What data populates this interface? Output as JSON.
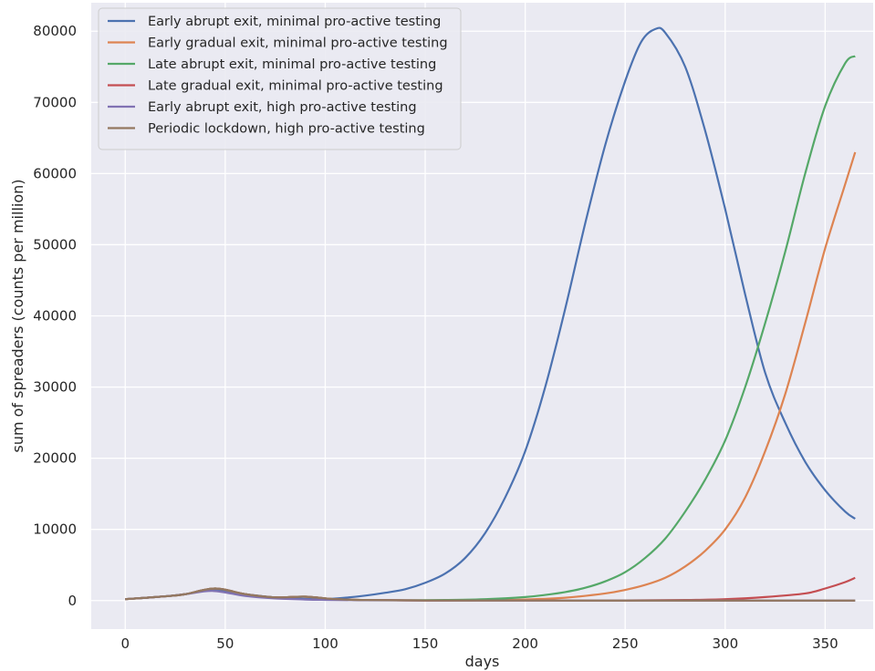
{
  "chart_data": {
    "type": "line",
    "title": "",
    "xlabel": "days",
    "ylabel": "sum of spreaders (counts per million)",
    "xlim": [
      -17,
      374
    ],
    "ylim": [
      -4000,
      84000
    ],
    "xticks": [
      0,
      50,
      100,
      150,
      200,
      250,
      300,
      350
    ],
    "yticks": [
      0,
      10000,
      20000,
      30000,
      40000,
      50000,
      60000,
      70000,
      80000
    ],
    "grid": true,
    "legend_position": "top-left",
    "series": [
      {
        "name": "Early  abrupt exit, minimal pro-active testing",
        "color": "#4c72b0",
        "x": [
          0,
          20,
          30,
          44,
          60,
          75,
          90,
          100,
          110,
          120,
          130,
          140,
          150,
          160,
          170,
          180,
          190,
          200,
          210,
          220,
          230,
          240,
          250,
          258,
          265,
          270,
          280,
          290,
          300,
          310,
          320,
          330,
          340,
          350,
          360,
          365
        ],
        "y": [
          200,
          600,
          900,
          1500,
          900,
          450,
          250,
          200,
          400,
          700,
          1100,
          1600,
          2500,
          3800,
          6000,
          9500,
          14500,
          21000,
          30000,
          41000,
          53000,
          64000,
          73000,
          78500,
          80300,
          79800,
          75000,
          66000,
          55000,
          43000,
          32000,
          25000,
          19500,
          15500,
          12500,
          11500
        ]
      },
      {
        "name": "Early gradual exit, minimal pro-active testing",
        "color": "#dd8452",
        "x": [
          0,
          20,
          30,
          45,
          60,
          75,
          90,
          105,
          120,
          140,
          160,
          180,
          200,
          220,
          240,
          250,
          260,
          270,
          280,
          290,
          300,
          310,
          320,
          330,
          340,
          350,
          360,
          365
        ],
        "y": [
          200,
          600,
          900,
          1700,
          900,
          450,
          550,
          200,
          80,
          30,
          20,
          50,
          150,
          400,
          1000,
          1500,
          2200,
          3200,
          4800,
          7000,
          10000,
          14500,
          21000,
          29000,
          39000,
          49500,
          58500,
          63000
        ]
      },
      {
        "name": "Late abrupt exit, minimal pro-active testing",
        "color": "#55a868",
        "x": [
          0,
          20,
          30,
          45,
          60,
          75,
          90,
          105,
          120,
          140,
          160,
          180,
          200,
          210,
          220,
          230,
          240,
          250,
          260,
          270,
          280,
          290,
          300,
          310,
          320,
          330,
          340,
          350,
          360,
          365
        ],
        "y": [
          200,
          600,
          900,
          1700,
          900,
          450,
          550,
          200,
          80,
          40,
          80,
          200,
          500,
          800,
          1200,
          1800,
          2700,
          4000,
          6000,
          8700,
          12500,
          17000,
          22500,
          30000,
          39000,
          49000,
          60000,
          69500,
          75500,
          76500
        ]
      },
      {
        "name": "Late gradual exit, minimal pro-active testing",
        "color": "#c44e52",
        "x": [
          0,
          20,
          30,
          45,
          60,
          75,
          90,
          105,
          120,
          150,
          200,
          250,
          280,
          300,
          320,
          340,
          350,
          360,
          365
        ],
        "y": [
          200,
          600,
          900,
          1700,
          900,
          450,
          550,
          200,
          80,
          20,
          10,
          20,
          80,
          200,
          500,
          1000,
          1700,
          2600,
          3200
        ]
      },
      {
        "name": "Early abrupt exit, high pro-active testing",
        "color": "#8172b3",
        "x": [
          0,
          20,
          30,
          44,
          60,
          75,
          90,
          100,
          120,
          150,
          200,
          250,
          300,
          365
        ],
        "y": [
          200,
          600,
          900,
          1350,
          650,
          300,
          150,
          100,
          50,
          20,
          10,
          10,
          5,
          5
        ]
      },
      {
        "name": "Periodic lockdown, high pro-active testing",
        "color": "#937860",
        "x": [
          0,
          20,
          30,
          45,
          60,
          75,
          90,
          105,
          120,
          150,
          200,
          250,
          300,
          365
        ],
        "y": [
          200,
          600,
          900,
          1700,
          900,
          450,
          550,
          200,
          80,
          20,
          10,
          5,
          5,
          5
        ]
      }
    ]
  }
}
